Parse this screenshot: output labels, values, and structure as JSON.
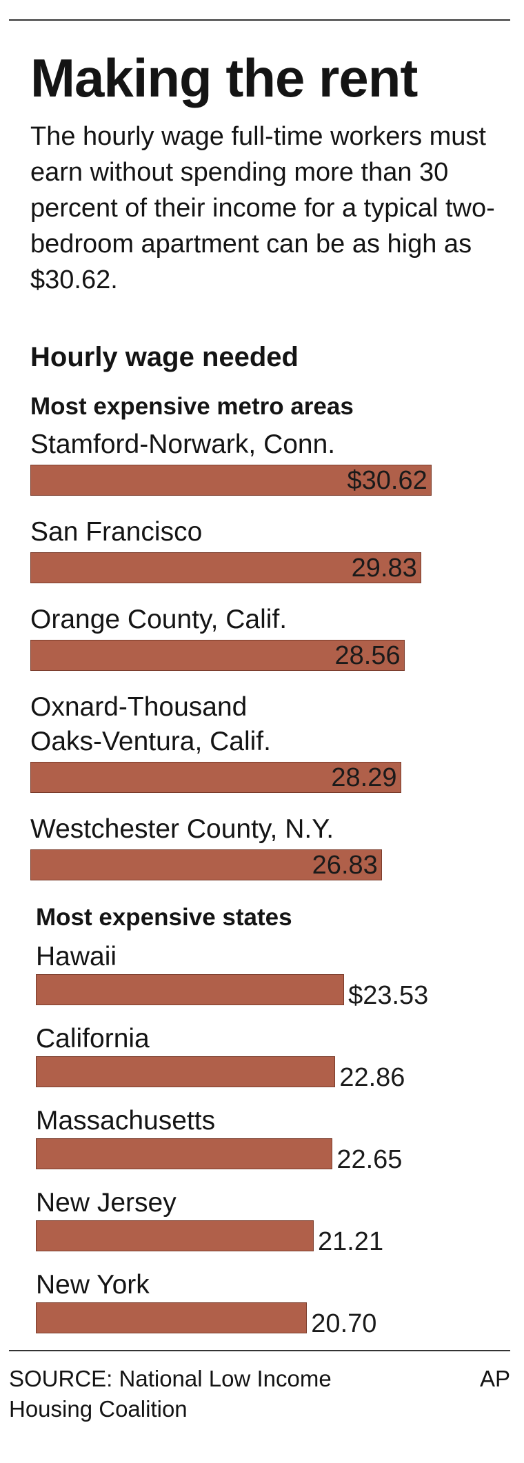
{
  "title": "Making the rent",
  "subtitle": "The hourly wage full-time workers must earn without spending more than 30 percent of their income for a typical two-bedroom apartment can be as high as $30.62.",
  "heading": "Hourly wage needed",
  "source": "SOURCE: National Low Income Housing Coalition",
  "credit": "AP",
  "chart_data": [
    {
      "type": "bar",
      "orientation": "horizontal",
      "title": "Most expensive metro areas",
      "categories": [
        "Stamford-Norwark, Conn.",
        "San Francisco",
        "Orange County, Calif.",
        "Oxnard-Thousand\nOaks-Ventura, Calif.",
        "Westchester County, N.Y."
      ],
      "values": [
        30.62,
        29.83,
        28.56,
        28.29,
        26.83
      ],
      "value_labels": [
        "$30.62",
        "29.83",
        "28.56",
        "28.29",
        "26.83"
      ],
      "color": "#b0604a",
      "label_position": "inside"
    },
    {
      "type": "bar",
      "orientation": "horizontal",
      "title": "Most expensive states",
      "categories": [
        "Hawaii",
        "California",
        "Massachusetts",
        "New Jersey",
        "New York"
      ],
      "values": [
        23.53,
        22.86,
        22.65,
        21.21,
        20.7
      ],
      "value_labels": [
        "$23.53",
        "22.86",
        "22.65",
        "21.21",
        "20.70"
      ],
      "color": "#b0604a",
      "label_position": "outside"
    }
  ]
}
